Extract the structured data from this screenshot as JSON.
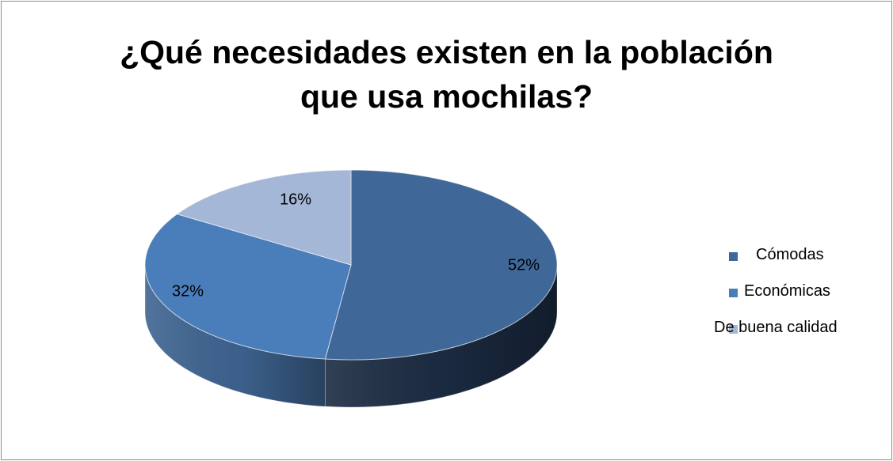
{
  "chart_data": {
    "type": "pie",
    "title_lines": [
      "¿Qué necesidades existen en la población",
      "que usa mochilas?"
    ],
    "slices": [
      {
        "label": "Cómodas",
        "value": 52,
        "data_label": "52%",
        "color": "#3f6797",
        "side_color": "#1b2b42"
      },
      {
        "label": "Económicas",
        "value": 32,
        "data_label": "32%",
        "color": "#4a7ebb",
        "side_color": "#3e6491"
      },
      {
        "label": "De buena calidad",
        "value": 16,
        "data_label": "16%",
        "color": "#a5b7d7",
        "side_color": "#7d8fb0"
      }
    ],
    "legend_position": "right",
    "3d": true
  }
}
